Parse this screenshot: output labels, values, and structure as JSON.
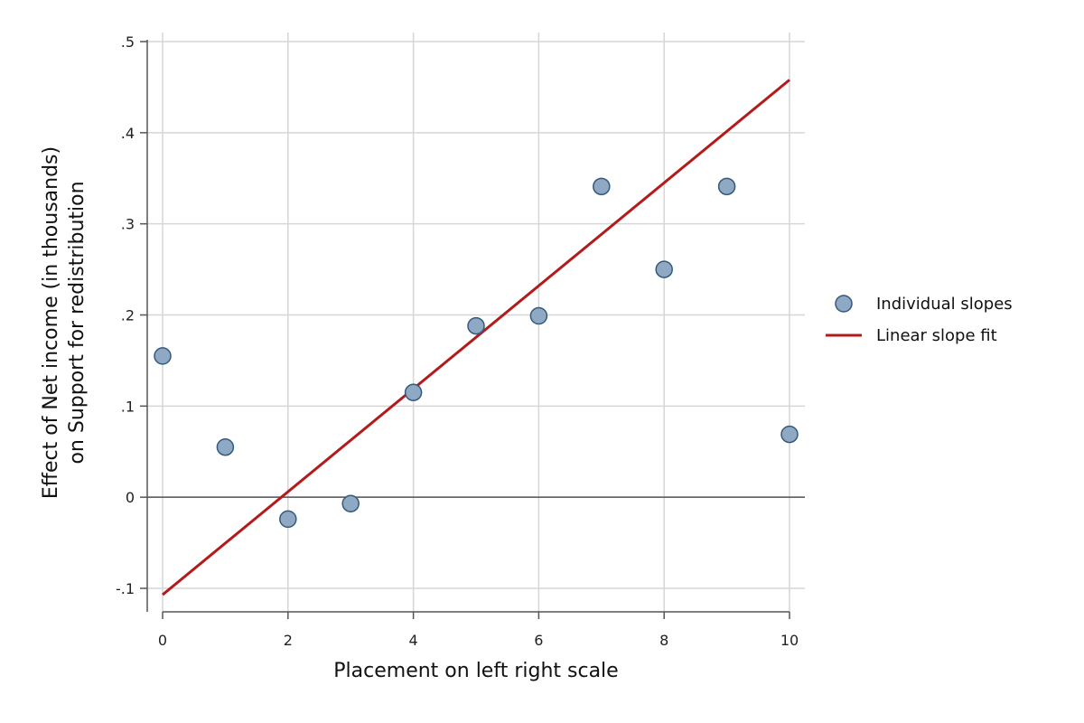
{
  "chart_data": {
    "type": "scatter",
    "xlabel": "Placement on left right scale",
    "ylabel_line1": "Effect of Net income (in thousands)",
    "ylabel_line2": "on Support for redistribution",
    "xlim": [
      0,
      10
    ],
    "ylim": [
      -0.1,
      0.5
    ],
    "x_ticks": [
      0,
      2,
      4,
      6,
      8,
      10
    ],
    "x_tick_labels": [
      "0",
      "2",
      "4",
      "6",
      "8",
      "10"
    ],
    "y_ticks": [
      -0.1,
      0,
      0.1,
      0.2,
      0.3,
      0.4,
      0.5
    ],
    "y_tick_labels": [
      "-.1",
      "0",
      ".1",
      ".2",
      ".3",
      ".4",
      ".5"
    ],
    "grid": true,
    "legend_position": "right",
    "series": [
      {
        "name": "Individual slopes",
        "kind": "scatter",
        "color": "#8fa8c4",
        "edge_color": "#34597d",
        "x": [
          0,
          1,
          2,
          3,
          4,
          5,
          6,
          7,
          8,
          9,
          10
        ],
        "y": [
          0.155,
          0.055,
          -0.024,
          -0.007,
          0.115,
          0.188,
          0.199,
          0.341,
          0.25,
          0.341,
          0.069
        ]
      },
      {
        "name": "Linear slope fit",
        "kind": "line",
        "color": "#b31b1b",
        "x": [
          0,
          10
        ],
        "y": [
          -0.107,
          0.458
        ]
      }
    ],
    "reference_line": {
      "y": 0,
      "color": "#555555"
    }
  }
}
